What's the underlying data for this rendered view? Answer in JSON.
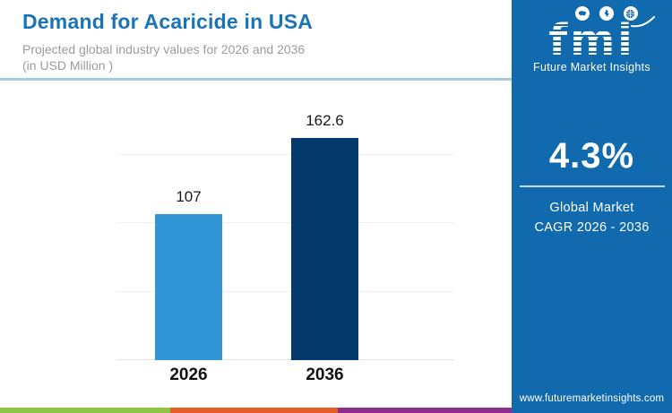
{
  "header": {
    "title": "Demand for Acaricide in USA",
    "subtitle_line1": "Projected global industry values for 2026 and 2036",
    "subtitle_line2": "(in USD Million )"
  },
  "sidebar": {
    "logo": {
      "text": "fmi",
      "caption": "Future Market Insights",
      "icons": [
        "usa-map-icon",
        "landmass-map-icon",
        "globe-icon"
      ]
    },
    "cagr": {
      "value": "4.3%",
      "caption_line1": "Global Market",
      "caption_line2": "CAGR 2026 - 2036"
    },
    "website": "www.futuremarketinsights.com",
    "background_color": "#1169ae"
  },
  "chart_data": {
    "type": "bar",
    "categories": [
      "2026",
      "2036"
    ],
    "values": [
      107,
      162.6
    ],
    "value_labels": [
      "107",
      "162.6"
    ],
    "units": "USD Million",
    "bar_colors": [
      "#3295d6",
      "#04396c"
    ],
    "title": "Demand for Acaricide in USA",
    "xlabel": "",
    "ylabel": "",
    "ylim": [
      0,
      170
    ],
    "gridlines": [
      50,
      100,
      150
    ],
    "grid": "on",
    "legend": "none"
  },
  "footer": {
    "stripe_colors": [
      "#8cc640",
      "#e85c25",
      "#8f2d8f"
    ]
  }
}
